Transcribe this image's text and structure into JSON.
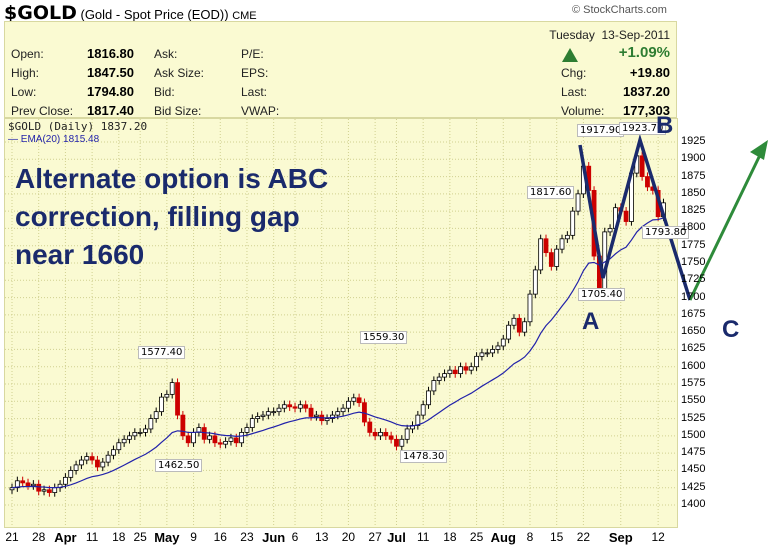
{
  "header": {
    "symbol": "$GOLD",
    "name": "(Gold - Spot Price (EOD))",
    "exchange": "CME",
    "credit": "© StockCharts.com"
  },
  "quote": {
    "open_label": "Open:",
    "open": "1816.80",
    "high_label": "High:",
    "high": "1847.50",
    "low_label": "Low:",
    "low": "1794.80",
    "prev_label": "Prev Close:",
    "prev": "1817.40",
    "ask_label": "Ask:",
    "asksize_label": "Ask Size:",
    "bid_label": "Bid:",
    "bidsize_label": "Bid Size:",
    "pe_label": "P/E:",
    "eps_label": "EPS:",
    "last_label2": "Last:",
    "vwap_label": "VWAP:",
    "date": "Tuesday  13-Sep-2011",
    "pct": "+1.09%",
    "chg_label": "Chg:",
    "chg": "+19.80",
    "last_label": "Last:",
    "last": "1837.20",
    "volume_label": "Volume:",
    "volume": "177,303",
    "up_color": "#2e7d32"
  },
  "chart_data": {
    "type": "candlestick",
    "legend": "$GOLD (Daily) 1837.20",
    "ema_legend": "EMA(20) 1815.48",
    "ylim": [
      1400,
      1925
    ],
    "yticks": [
      1400,
      1425,
      1450,
      1475,
      1500,
      1525,
      1550,
      1575,
      1600,
      1625,
      1650,
      1675,
      1700,
      1725,
      1750,
      1775,
      1800,
      1825,
      1850,
      1875,
      1900,
      1925
    ],
    "xticks": [
      {
        "t": "21",
        "i": 0
      },
      {
        "t": "28",
        "i": 5
      },
      {
        "t": "Apr",
        "i": 10,
        "m": true
      },
      {
        "t": "11",
        "i": 15
      },
      {
        "t": "18",
        "i": 20
      },
      {
        "t": "25",
        "i": 24
      },
      {
        "t": "May",
        "i": 29,
        "m": true
      },
      {
        "t": "9",
        "i": 34
      },
      {
        "t": "16",
        "i": 39
      },
      {
        "t": "23",
        "i": 44
      },
      {
        "t": "Jun",
        "i": 49,
        "m": true
      },
      {
        "t": "6",
        "i": 53
      },
      {
        "t": "13",
        "i": 58
      },
      {
        "t": "20",
        "i": 63
      },
      {
        "t": "27",
        "i": 68
      },
      {
        "t": "Jul",
        "i": 72,
        "m": true
      },
      {
        "t": "11",
        "i": 77
      },
      {
        "t": "18",
        "i": 82
      },
      {
        "t": "25",
        "i": 87
      },
      {
        "t": "Aug",
        "i": 92,
        "m": true
      },
      {
        "t": "8",
        "i": 97
      },
      {
        "t": "15",
        "i": 102
      },
      {
        "t": "22",
        "i": 107
      },
      {
        "t": "Sep",
        "i": 114,
        "m": true
      },
      {
        "t": "12",
        "i": 121
      }
    ],
    "closes": [
      1425,
      1435,
      1432,
      1428,
      1430,
      1420,
      1422,
      1418,
      1425,
      1430,
      1440,
      1450,
      1458,
      1465,
      1470,
      1465,
      1455,
      1462,
      1472,
      1480,
      1490,
      1495,
      1500,
      1505,
      1505,
      1510,
      1525,
      1535,
      1556,
      1560,
      1577,
      1530,
      1500,
      1490,
      1505,
      1512,
      1495,
      1500,
      1490,
      1488,
      1492,
      1497,
      1490,
      1505,
      1512,
      1525,
      1528,
      1530,
      1535,
      1535,
      1540,
      1545,
      1542,
      1540,
      1545,
      1540,
      1528,
      1530,
      1522,
      1525,
      1530,
      1535,
      1540,
      1550,
      1555,
      1548,
      1520,
      1505,
      1500,
      1505,
      1500,
      1495,
      1485,
      1495,
      1510,
      1515,
      1530,
      1545,
      1565,
      1580,
      1585,
      1590,
      1595,
      1590,
      1600,
      1595,
      1600,
      1615,
      1620,
      1620,
      1625,
      1630,
      1640,
      1660,
      1670,
      1650,
      1665,
      1705,
      1740,
      1785,
      1765,
      1745,
      1770,
      1785,
      1790,
      1825,
      1850,
      1890,
      1855,
      1760,
      1710,
      1795,
      1800,
      1830,
      1825,
      1810,
      1880,
      1905,
      1875,
      1860,
      1855,
      1817,
      1837
    ],
    "price_labels": [
      "1917.90",
      "1923.70",
      "1817.60",
      "1705.40",
      "1793.80",
      "1577.40",
      "1462.50",
      "1559.30",
      "1478.30"
    ],
    "up_color": "#000000",
    "down_color": "#cc0000",
    "ema_color": "#2222aa"
  },
  "annotation": {
    "line1": "Alternate option is ABC",
    "line2": "correction, filling gap",
    "line3": "near 1660",
    "wave_a": "A",
    "wave_b": "B",
    "wave_c": "C"
  }
}
